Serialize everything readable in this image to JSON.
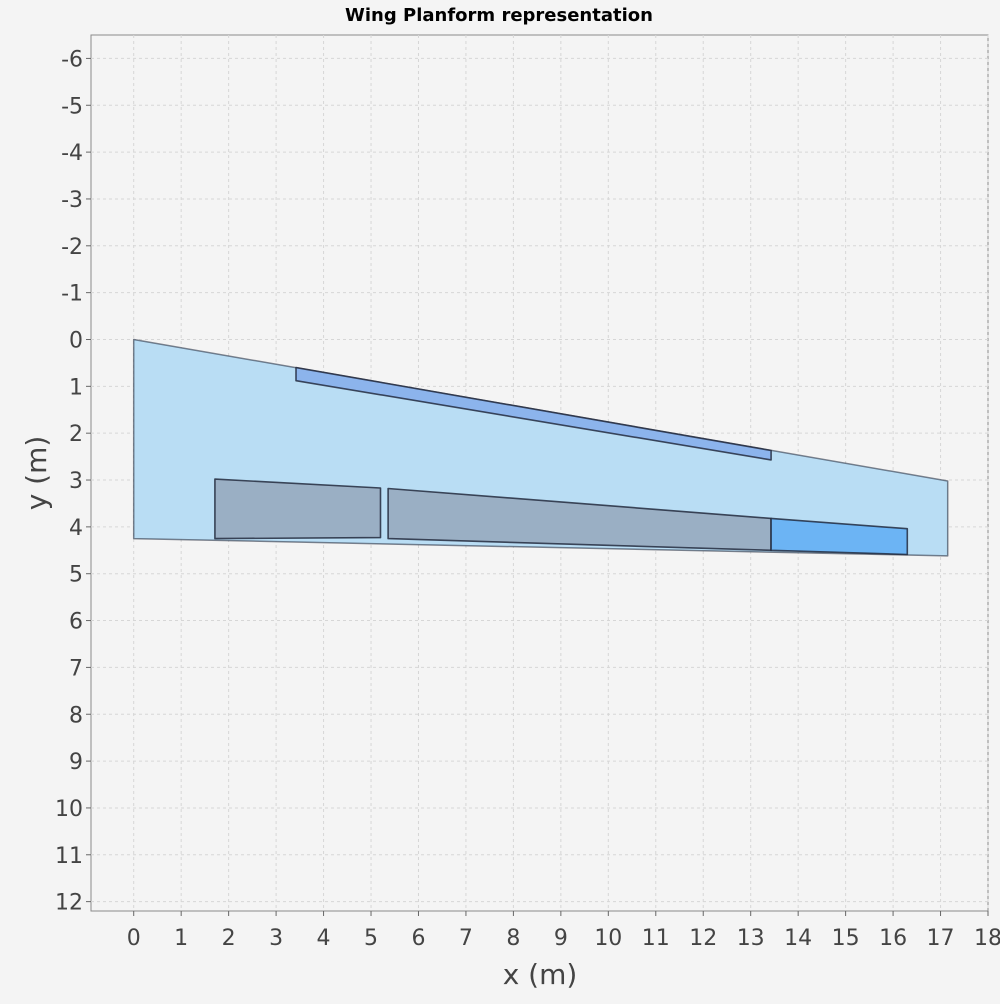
{
  "chart_data": {
    "type": "area",
    "title": "Wing Planform representation",
    "xlabel": "x (m)",
    "ylabel": "y (m)",
    "xlim": [
      -0.9,
      18
    ],
    "ylim": [
      -6.5,
      12.2
    ],
    "y_inverted": true,
    "grid": true,
    "xticks": [
      0,
      1,
      2,
      3,
      4,
      5,
      6,
      7,
      8,
      9,
      10,
      11,
      12,
      13,
      14,
      15,
      16,
      17,
      18
    ],
    "yticks": [
      -6,
      -5,
      -4,
      -3,
      -2,
      -1,
      0,
      1,
      2,
      3,
      4,
      5,
      6,
      7,
      8,
      9,
      10,
      11,
      12
    ],
    "colors": {
      "wing": "#b9ddf4",
      "slat": "#8cb4ec",
      "flap": "#9aafc4",
      "aileron": "#6cb4f4",
      "outline": "#1c2234"
    },
    "shapes": [
      {
        "name": "wing",
        "points": [
          [
            0,
            0
          ],
          [
            17.15,
            3.02
          ],
          [
            17.15,
            4.62
          ],
          [
            0,
            4.25
          ]
        ]
      },
      {
        "name": "slat",
        "points": [
          [
            3.42,
            0.6
          ],
          [
            13.43,
            2.37
          ],
          [
            13.43,
            2.57
          ],
          [
            3.42,
            0.88
          ]
        ]
      },
      {
        "name": "inner-flap",
        "points": [
          [
            1.71,
            2.98
          ],
          [
            5.2,
            3.17
          ],
          [
            5.2,
            4.23
          ],
          [
            1.71,
            4.25
          ]
        ]
      },
      {
        "name": "outer-flap",
        "points": [
          [
            5.36,
            3.18
          ],
          [
            13.43,
            3.82
          ],
          [
            13.43,
            4.5
          ],
          [
            5.36,
            4.25
          ]
        ]
      },
      {
        "name": "aileron",
        "points": [
          [
            13.43,
            3.82
          ],
          [
            16.3,
            4.04
          ],
          [
            16.3,
            4.59
          ],
          [
            13.43,
            4.5
          ]
        ]
      }
    ]
  }
}
